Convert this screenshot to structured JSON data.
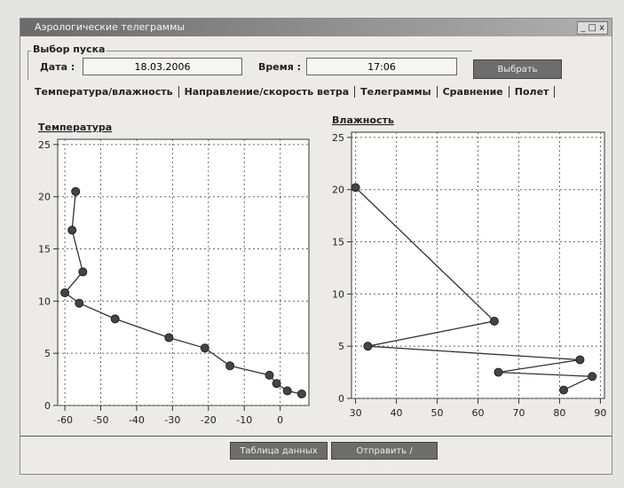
{
  "window": {
    "title": "Аэрологические телеграммы",
    "group_label": "Выбор пуска",
    "date_label": "Дата :",
    "date_value": "18.03.2006",
    "time_label": "Время :",
    "time_value": "17:06",
    "select_button": "Выбрать",
    "tabs": [
      "Температура/влажность",
      "Направление/скорость ветра",
      "Телеграммы",
      "Сравнение",
      "Полет"
    ],
    "buttons": [
      "Таблица данных пуска",
      "Отправить / Распечатать"
    ]
  },
  "chart_data": [
    {
      "type": "line",
      "title": "Температура",
      "x": [
        6,
        2,
        -1,
        -3,
        -14,
        -21,
        -31,
        -46,
        -56,
        -60,
        -55,
        -58,
        -57
      ],
      "values": [
        1.1,
        1.4,
        2.1,
        2.9,
        3.8,
        5.5,
        6.5,
        8.3,
        9.8,
        10.8,
        12.8,
        16.8,
        20.5
      ],
      "color": "#333333",
      "xlim": [
        -62,
        8
      ],
      "ylim": [
        0,
        25.5
      ],
      "xticks": [
        -60,
        -50,
        -40,
        -30,
        -20,
        -10,
        0
      ],
      "yticks": [
        0,
        5,
        10,
        15,
        20,
        25
      ],
      "grid": true
    },
    {
      "type": "line",
      "title": "Влажность",
      "x": [
        81,
        88,
        65,
        85,
        33,
        64,
        30
      ],
      "values": [
        0.8,
        2.1,
        2.5,
        3.7,
        5,
        7.4,
        20.2
      ],
      "color": "#333333",
      "xlim": [
        29,
        91
      ],
      "ylim": [
        0,
        25.5
      ],
      "xticks": [
        30,
        40,
        50,
        60,
        70,
        80,
        90
      ],
      "yticks": [
        0,
        5,
        10,
        15,
        20,
        25
      ],
      "grid": true
    }
  ]
}
